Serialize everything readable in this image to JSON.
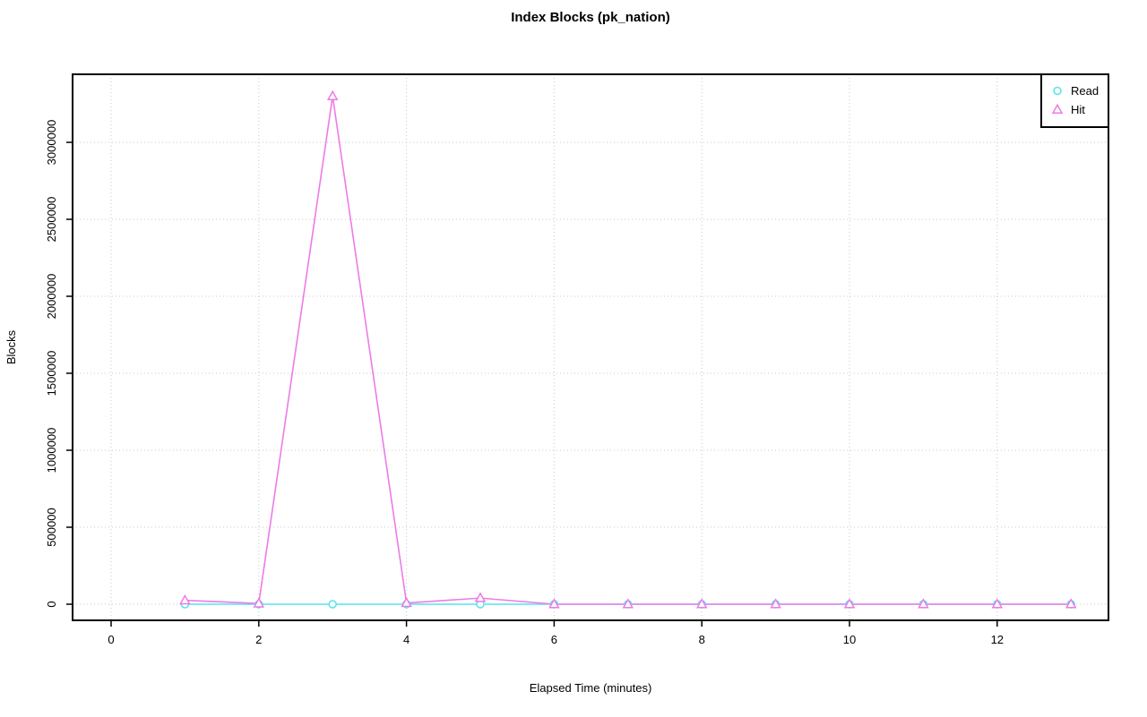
{
  "chart_data": {
    "type": "line",
    "title": "Index Blocks (pk_nation)",
    "xlabel": "Elapsed Time (minutes)",
    "ylabel": "Blocks",
    "x": [
      1,
      2,
      3,
      4,
      5,
      6,
      7,
      8,
      9,
      10,
      11,
      12,
      13
    ],
    "series": [
      {
        "name": "Read",
        "marker": "circle",
        "color": "#55e4eb",
        "values": [
          0,
          0,
          0,
          0,
          0,
          0,
          0,
          0,
          0,
          0,
          0,
          0,
          0
        ]
      },
      {
        "name": "Hit",
        "marker": "triangle",
        "color": "#ee7ae8",
        "values": [
          25000,
          5000,
          3300000,
          8000,
          40000,
          0,
          0,
          0,
          0,
          0,
          0,
          0,
          0
        ]
      }
    ],
    "x_axis": {
      "ticks": [
        0,
        2,
        4,
        6,
        8,
        10,
        12
      ],
      "range": [
        -0.52,
        13.52
      ]
    },
    "y_axis": {
      "ticks": [
        0,
        500000,
        1000000,
        1500000,
        2000000,
        2500000,
        3000000
      ],
      "tick_labels": [
        "0",
        "500000",
        "1000000",
        "1500000",
        "2000000",
        "2500000",
        "3000000"
      ],
      "range": [
        -132000,
        3432000
      ]
    },
    "grid": "dotted",
    "legend": {
      "position": "top-right",
      "items": [
        "Read",
        "Hit"
      ]
    }
  },
  "style": {
    "grid_color": "#c9c9c9",
    "axis_color": "#000000",
    "background": "#ffffff"
  }
}
